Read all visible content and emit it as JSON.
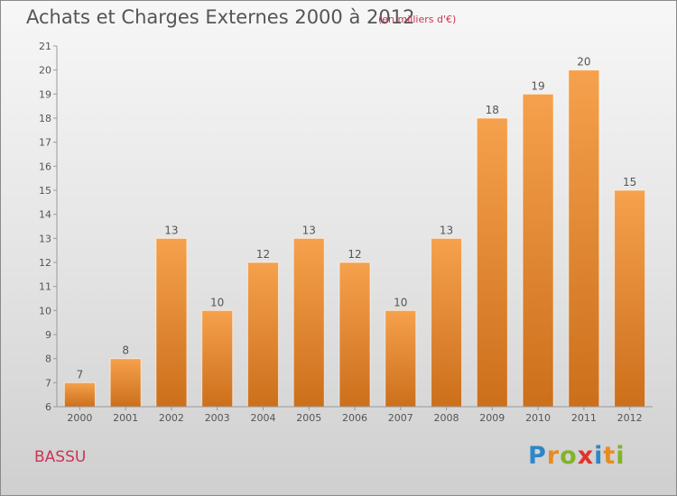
{
  "title": "Achats et Charges Externes 2000 à 2012",
  "subtitle": "(en milliers d'€)",
  "commune": "BASSU",
  "brand": {
    "letters": [
      "P",
      "r",
      "o",
      "x",
      "i",
      "t",
      "i"
    ],
    "colors": [
      "#2e86c8",
      "#e98b1e",
      "#82b32a",
      "#e2332b",
      "#2e86c8",
      "#e98b1e",
      "#82b32a"
    ]
  },
  "colors": {
    "bar_top": "#f6a14d",
    "bar_bottom": "#cc6f1b",
    "text": "#555555",
    "accent": "#cc3355"
  },
  "chart_data": {
    "type": "bar",
    "title": "Achats et Charges Externes 2000 à 2012",
    "subtitle": "(en milliers d'€)",
    "categories": [
      "2000",
      "2001",
      "2002",
      "2003",
      "2004",
      "2005",
      "2006",
      "2007",
      "2008",
      "2009",
      "2010",
      "2011",
      "2012"
    ],
    "values": [
      7,
      8,
      13,
      10,
      12,
      13,
      12,
      10,
      13,
      18,
      19,
      20,
      15
    ],
    "ylim": [
      6,
      21
    ],
    "yticks": [
      6,
      7,
      8,
      9,
      10,
      11,
      12,
      13,
      14,
      15,
      16,
      17,
      18,
      19,
      20,
      21
    ],
    "grid": false,
    "legend": "none"
  }
}
